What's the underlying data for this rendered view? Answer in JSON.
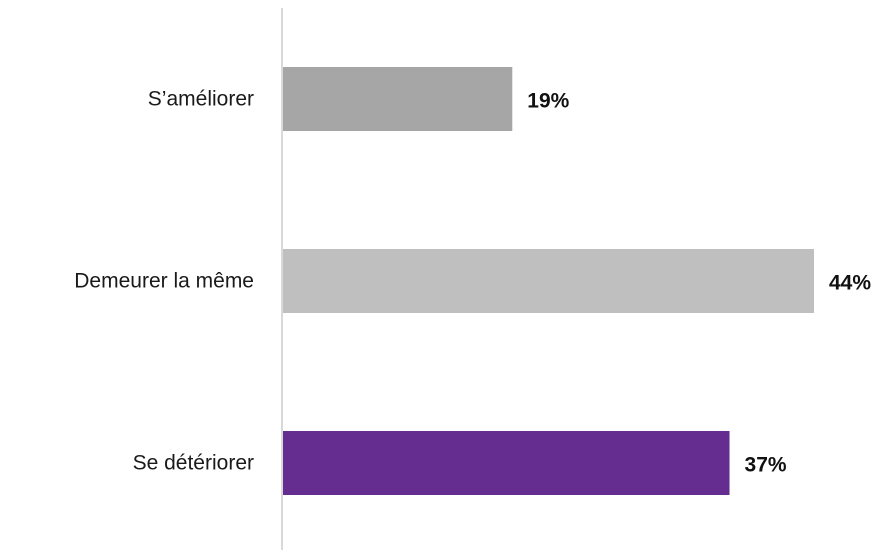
{
  "chart_data": {
    "type": "bar",
    "orientation": "horizontal",
    "categories": [
      "S’améliorer",
      "Demeurer la même",
      "Se détériorer"
    ],
    "values": [
      19,
      44,
      37
    ],
    "value_labels": [
      "19%",
      "44%",
      "37%"
    ],
    "colors": [
      "#a6a6a6",
      "#bfbfbf",
      "#662d91"
    ],
    "axis_color": "#d9d9d9",
    "xlim": [
      0,
      44
    ],
    "grid": false,
    "title": "",
    "xlabel": "",
    "ylabel": ""
  }
}
